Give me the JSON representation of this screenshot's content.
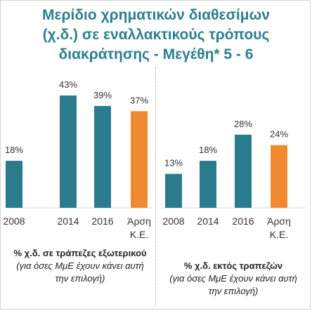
{
  "title": {
    "line1": "Μερίδιο χρηματικών διαθεσίμων",
    "line2": "(χ.δ.) σε εναλλακτικούς τρόπους",
    "line3": "διακράτησης - Μεγέθη* 5 - 6"
  },
  "colors": {
    "teal": "#2b7b8f",
    "orange": "#f08a32",
    "title": "#2e7f8f"
  },
  "chart_data": [
    {
      "type": "bar",
      "categories": [
        "2008",
        "2014",
        "2016",
        "Άρση Κ.Ε."
      ],
      "values": [
        18,
        43,
        39,
        37
      ],
      "value_labels": [
        "18%",
        "43%",
        "39%",
        "37%"
      ],
      "highlight_index": 3,
      "caption_bold": "% χ.δ. σε τράπεζες εξωτερικού",
      "caption_italic": "(για όσες ΜμΕ έχουν κάνει αυτή την επιλογή)"
    },
    {
      "type": "bar",
      "categories": [
        "2008",
        "2014",
        "2016",
        "Άρση Κ.Ε."
      ],
      "values": [
        13,
        18,
        28,
        24
      ],
      "value_labels": [
        "13%",
        "18%",
        "28%",
        "24%"
      ],
      "highlight_index": 3,
      "caption_bold": "% χ.δ. εκτός τραπεζών",
      "caption_italic": "(για όσες ΜμΕ έχουν κάνει αυτή την επιλογή)"
    }
  ]
}
